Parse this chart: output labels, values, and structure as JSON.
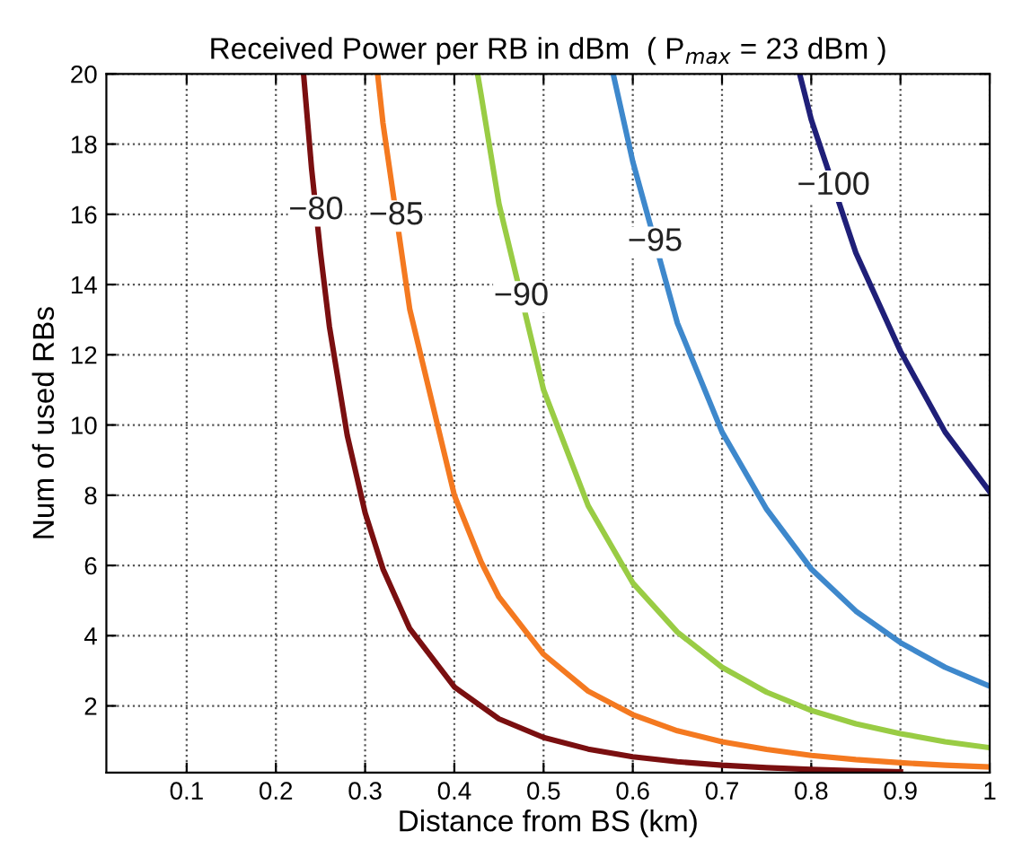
{
  "chart_data": {
    "type": "line",
    "title": "Received Power per RB in dBm  ( P$_{max}$ = 23 dBm )",
    "xlabel": "Distance from BS (km)",
    "ylabel": "Num of used RBs",
    "xlim": [
      0.01,
      1
    ],
    "ylim": [
      0.1,
      20
    ],
    "xticks": [
      0.1,
      0.2,
      0.3,
      0.4,
      0.5,
      0.6,
      0.7,
      0.8,
      0.9,
      1
    ],
    "yticks": [
      2,
      4,
      6,
      8,
      10,
      12,
      14,
      16,
      18,
      20
    ],
    "grid": true,
    "legend": false,
    "marker": "none",
    "line_style": "solid",
    "series": [
      {
        "name": "−80",
        "color": "#7a0f10",
        "x": [
          0.231,
          0.24,
          0.25,
          0.26,
          0.28,
          0.3,
          0.32,
          0.35,
          0.4,
          0.45,
          0.5,
          0.55,
          0.6,
          0.65,
          0.7,
          0.75,
          0.8,
          0.85,
          0.9
        ],
        "values": [
          20,
          17.3,
          14.9,
          12.8,
          9.7,
          7.5,
          5.9,
          4.2,
          2.54,
          1.63,
          1.1,
          0.77,
          0.55,
          0.41,
          0.31,
          0.24,
          0.19,
          0.15,
          0.12
        ]
      },
      {
        "name": "−85",
        "color": "#f47920",
        "x": [
          0.314,
          0.32,
          0.35,
          0.4,
          0.43,
          0.45,
          0.5,
          0.55,
          0.6,
          0.65,
          0.7,
          0.75,
          0.8,
          0.85,
          0.9,
          0.95,
          1
        ],
        "values": [
          20,
          18.6,
          13.3,
          8.0,
          6.1,
          5.1,
          3.47,
          2.42,
          1.75,
          1.29,
          0.98,
          0.76,
          0.59,
          0.47,
          0.38,
          0.31,
          0.26
        ]
      },
      {
        "name": "−90",
        "color": "#99cc44",
        "x": [
          0.426,
          0.43,
          0.45,
          0.5,
          0.55,
          0.6,
          0.65,
          0.7,
          0.75,
          0.8,
          0.85,
          0.9,
          0.95,
          1
        ],
        "values": [
          20,
          19.4,
          16.3,
          11.0,
          7.7,
          5.5,
          4.1,
          3.1,
          2.39,
          1.87,
          1.49,
          1.21,
          0.98,
          0.81
        ]
      },
      {
        "name": "−95",
        "color": "#3e88cc",
        "x": [
          0.578,
          0.6,
          0.65,
          0.7,
          0.75,
          0.8,
          0.85,
          0.9,
          0.95,
          1
        ],
        "values": [
          20,
          17.5,
          12.9,
          9.8,
          7.6,
          5.9,
          4.7,
          3.8,
          3.1,
          2.56
        ]
      },
      {
        "name": "−100",
        "color": "#1f1f78",
        "x": [
          0.787,
          0.8,
          0.85,
          0.9,
          0.95,
          1
        ],
        "values": [
          20,
          18.7,
          14.9,
          12.1,
          9.8,
          8.1
        ]
      }
    ]
  }
}
